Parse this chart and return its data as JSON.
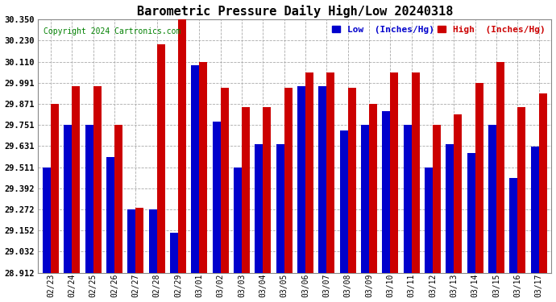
{
  "title": "Barometric Pressure Daily High/Low 20240318",
  "copyright": "Copyright 2024 Cartronics.com",
  "legend_low": "Low  (Inches/Hg)",
  "legend_high": "High  (Inches/Hg)",
  "dates": [
    "02/23",
    "02/24",
    "02/25",
    "02/26",
    "02/27",
    "02/28",
    "02/29",
    "03/01",
    "03/02",
    "03/03",
    "03/04",
    "03/05",
    "03/06",
    "03/07",
    "03/08",
    "03/09",
    "03/10",
    "03/11",
    "03/12",
    "03/13",
    "03/14",
    "03/15",
    "03/16",
    "03/17"
  ],
  "high": [
    29.87,
    29.97,
    29.97,
    29.75,
    29.28,
    30.21,
    30.35,
    30.11,
    29.96,
    29.85,
    29.85,
    29.96,
    30.05,
    30.05,
    29.96,
    29.87,
    30.05,
    30.05,
    29.75,
    29.81,
    29.99,
    30.11,
    29.85,
    29.93
  ],
  "low": [
    29.51,
    29.75,
    29.75,
    29.57,
    29.27,
    29.27,
    29.14,
    30.09,
    29.77,
    29.51,
    29.64,
    29.64,
    29.97,
    29.97,
    29.72,
    29.75,
    29.83,
    29.75,
    29.51,
    29.64,
    29.59,
    29.75,
    29.45,
    29.63
  ],
  "ylim_min": 28.912,
  "ylim_max": 30.35,
  "yticks": [
    28.912,
    29.032,
    29.152,
    29.272,
    29.392,
    29.511,
    29.631,
    29.751,
    29.871,
    29.991,
    30.11,
    30.23,
    30.35
  ],
  "bar_color_low": "#0000cc",
  "bar_color_high": "#cc0000",
  "bg_color": "#ffffff",
  "grid_color": "#aaaaaa",
  "title_fontsize": 11,
  "copyright_fontsize": 7,
  "legend_fontsize": 8,
  "bar_bottom": 28.912
}
